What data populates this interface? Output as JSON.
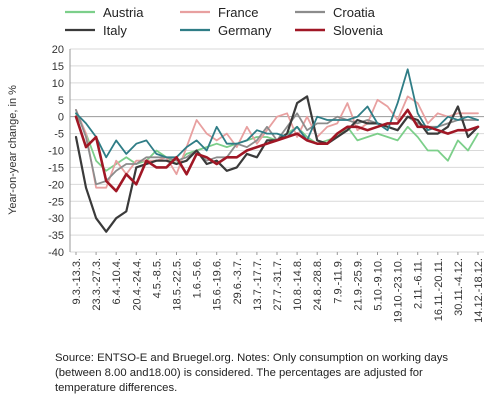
{
  "chart_data": {
    "type": "line",
    "ylabel": "Year-on-year change, in %",
    "ylim": [
      -40,
      20
    ],
    "yticks": [
      20,
      15,
      10,
      5,
      0,
      -5,
      -10,
      -15,
      -20,
      -25,
      -30,
      -35,
      -40
    ],
    "grid": true,
    "legend": "top",
    "categories": [
      "9.3.-13.3.",
      "16.3.-20.3.",
      "23.3.-27.3.",
      "30.3.-3.4.",
      "6.4.-10.4.",
      "13.4.-17.4.",
      "20.4.-24.4.",
      "27.4.-1.5.",
      "4.5.-8.5.",
      "11.5.-15.5.",
      "18.5.-22.5.",
      "25.5.-29.5.",
      "1.6.-5.6.",
      "8.6.-12.6.",
      "15.6.-19.6.",
      "22.6.-26.6.",
      "29.6.-3.7.",
      "6.7.-10.7.",
      "13.7.-17.7.",
      "20.7.-24.7.",
      "27.7.-31.7.",
      "3.8.-7.8.",
      "10.8.-14.8.",
      "17.8.-21.8.",
      "24.8.-28.8.",
      "31.8.-4.9.",
      "7.9.-11.9.",
      "14.9.-18.9.",
      "21.9.-25.9.",
      "28.9.-2.10.",
      "5.10.-9.10.",
      "12.10.-16.10.",
      "19.10.-23.10.",
      "26.10.-30.10.",
      "2.11.-6.11.",
      "9.11.-13.11.",
      "16.11.-20.11.",
      "23.11.-27.11.",
      "30.11.-4.12.",
      "7.12.-11.12.",
      "14.12.-18.12."
    ],
    "xtick_labels": [
      "9.3.-13.3.",
      "23.3.-27.3.",
      "6.4.-10.4.",
      "20.4.-24.4.",
      "4.5.-8.5.",
      "18.5.-22.5.",
      "1.6.-5.6.",
      "15.6.-19.6.",
      "29.6.-3.7.",
      "13.7.-17.7.",
      "27.7.-31.7.",
      "10.8.-14.8.",
      "24.8.-28.8.",
      "7.9.-11.9.",
      "21.9.-25.9.",
      "5.10.-9.10.",
      "19.10.-23.10.",
      "2.11.-6.11.",
      "16.11.-20.11.",
      "30.11.-4.12.",
      "14.12.-18.12."
    ],
    "series": [
      {
        "name": "Austria",
        "color": "#7ccf8a",
        "values": [
          1,
          -5,
          -13,
          -16,
          -14,
          -12,
          -14,
          -13,
          -10,
          -12,
          -14,
          -11,
          -10,
          -9,
          -8,
          -9,
          -8,
          -7,
          -6,
          -6,
          -7,
          -5,
          -3,
          -6,
          -8,
          -7,
          -6,
          -3,
          -7,
          -6,
          -5,
          -6,
          -7,
          -3,
          -6,
          -10,
          -10,
          -13,
          -7,
          -10,
          -5
        ]
      },
      {
        "name": "France",
        "color": "#e8a0a0",
        "values": [
          2,
          -5,
          -21,
          -21,
          -13,
          -17,
          -13,
          -13,
          -13,
          -12,
          -17,
          -9,
          -1,
          -5,
          -7,
          -5,
          -9,
          -3,
          -8,
          -4,
          0,
          1,
          -6,
          0,
          -6,
          -3,
          -2,
          4,
          -4,
          -2,
          5,
          3,
          -1,
          6,
          4,
          -2,
          1,
          0,
          1,
          1,
          1
        ]
      },
      {
        "name": "Croatia",
        "color": "#8c8c8c",
        "values": [
          2,
          -6,
          -20,
          -19,
          -16,
          -14,
          -14,
          -12,
          -12,
          -12,
          -13,
          -12,
          -10,
          -13,
          -12,
          -12,
          -8,
          -9,
          -7,
          -3,
          -7,
          -3,
          1,
          -4,
          -2,
          -2,
          0,
          -1,
          -2,
          -1,
          -2,
          -3,
          -4,
          0,
          -2,
          -3,
          -3,
          -2,
          -1,
          -1,
          -1
        ]
      },
      {
        "name": "Italy",
        "color": "#3a3a3a",
        "values": [
          -6,
          -21,
          -30,
          -34,
          -30,
          -28,
          -15,
          -14,
          -13,
          -13,
          -14,
          -13,
          -10,
          -14,
          -13,
          -16,
          -15,
          -11,
          -12,
          -7,
          -7,
          -5,
          4,
          6,
          -7,
          -8,
          -6,
          -4,
          -1,
          -2,
          -2,
          -3,
          -4,
          0,
          -1,
          -5,
          -5,
          -3,
          3,
          -6,
          -3
        ]
      },
      {
        "name": "Germany",
        "color": "#2f7d86",
        "values": [
          1,
          -2,
          -6,
          -12,
          -7,
          -11,
          -8,
          -7,
          -11,
          -12,
          -12,
          -9,
          -7,
          -10,
          -3,
          -8,
          -8,
          -7,
          -4,
          -5,
          -5,
          -6,
          -3,
          -7,
          0,
          -1,
          -1,
          -1,
          0,
          3,
          -2,
          -4,
          4,
          14,
          1,
          -4,
          -3,
          0,
          -1,
          0,
          -1
        ]
      },
      {
        "name": "Slovenia",
        "color": "#a01725",
        "values": [
          0,
          -9,
          -6,
          -19,
          -22,
          -17,
          -20,
          -13,
          -15,
          -15,
          -12,
          -17,
          -11,
          -12,
          -14,
          -12,
          -12,
          -10,
          -9,
          -8,
          -7,
          -6,
          -5,
          -7,
          -8,
          -8,
          -5,
          -3,
          -3,
          -4,
          -3,
          -2,
          -2,
          2,
          -3,
          -3,
          -4,
          -5,
          -4,
          -4,
          -3
        ]
      }
    ]
  }
}
